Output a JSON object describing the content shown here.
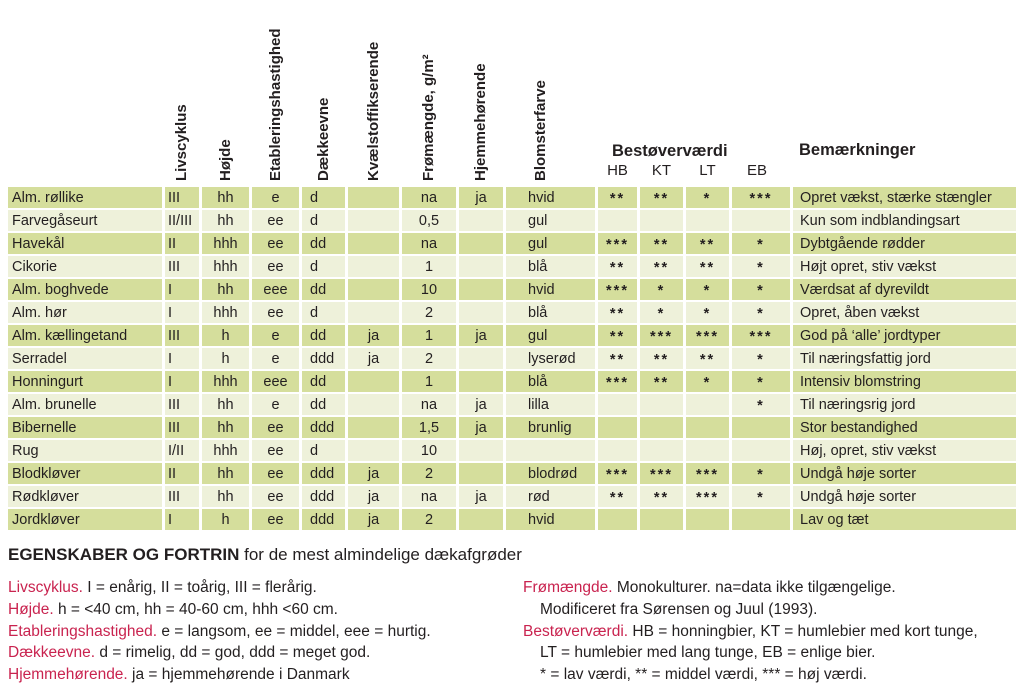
{
  "colors": {
    "row_dark": "#d5de9c",
    "row_light": "#eef1da",
    "footnote_keyword_red": "#c9234f"
  },
  "table": {
    "rotated_headers": [
      "Livscyklus",
      "Højde",
      "Etableringshastighed",
      "Dækkeevne",
      "Kvælstoffikserende",
      "Frømængde, g/m²",
      "Hjemmehørende",
      "Blomsterfarve"
    ],
    "group_headers": {
      "bestover": "Bestøverværdi",
      "bemaerkninger": "Bemærkninger"
    },
    "sub_headers": [
      "HB",
      "KT",
      "LT",
      "EB"
    ],
    "rows": [
      [
        "Alm. røllike",
        "III",
        "hh",
        "e",
        "d",
        "",
        "na",
        "ja",
        "hvid",
        "**",
        "**",
        "*",
        "***",
        "Opret vækst, stærke stængler"
      ],
      [
        "Farvegåseurt",
        "II/III",
        "hh",
        "ee",
        "d",
        "",
        "0,5",
        "",
        "gul",
        "",
        "",
        "",
        "",
        "Kun som indblandingsart"
      ],
      [
        "Havekål",
        "II",
        "hhh",
        "ee",
        "dd",
        "",
        "na",
        "",
        "gul",
        "***",
        "**",
        "**",
        "*",
        "Dybtgående rødder"
      ],
      [
        "Cikorie",
        "III",
        "hhh",
        "ee",
        "d",
        "",
        "1",
        "",
        "blå",
        "**",
        "**",
        "**",
        "*",
        "Højt opret, stiv vækst"
      ],
      [
        "Alm. boghvede",
        "I",
        "hh",
        "eee",
        "dd",
        "",
        "10",
        "",
        "hvid",
        "***",
        "*",
        "*",
        "*",
        "Værdsat af dyrevildt"
      ],
      [
        "Alm. hør",
        "I",
        "hhh",
        "ee",
        "d",
        "",
        "2",
        "",
        "blå",
        "**",
        "*",
        "*",
        "*",
        "Opret, åben vækst"
      ],
      [
        "Alm. kællingetand",
        "III",
        "h",
        "e",
        "dd",
        "ja",
        "1",
        "ja",
        "gul",
        "**",
        "***",
        "***",
        "***",
        "God på ‘alle’ jordtyper"
      ],
      [
        "Serradel",
        "I",
        "h",
        "e",
        "ddd",
        "ja",
        "2",
        "",
        "lyserød",
        "**",
        "**",
        "**",
        "*",
        "Til næringsfattig jord"
      ],
      [
        "Honningurt",
        "I",
        "hhh",
        "eee",
        "dd",
        "",
        "1",
        "",
        "blå",
        "***",
        "**",
        "*",
        "*",
        "Intensiv blomstring"
      ],
      [
        "Alm. brunelle",
        "III",
        "hh",
        "e",
        "dd",
        "",
        "na",
        "ja",
        "lilla",
        "",
        "",
        "",
        "*",
        "Til næringsrig jord"
      ],
      [
        "Bibernelle",
        "III",
        "hh",
        "ee",
        "ddd",
        "",
        "1,5",
        "ja",
        "brunlig",
        "",
        "",
        "",
        "",
        "Stor bestandighed"
      ],
      [
        "Rug",
        "I/II",
        "hhh",
        "ee",
        "d",
        "",
        "10",
        "",
        "",
        "",
        "",
        "",
        "",
        "Høj, opret, stiv vækst"
      ],
      [
        "Blodkløver",
        "II",
        "hh",
        "ee",
        "ddd",
        "ja",
        "2",
        "",
        "blodrød",
        "***",
        "***",
        "***",
        "*",
        "Undgå høje sorter"
      ],
      [
        "Rødkløver",
        "III",
        "hh",
        "ee",
        "ddd",
        "ja",
        "na",
        "ja",
        "rød",
        "**",
        "**",
        "***",
        "*",
        "Undgå høje sorter"
      ],
      [
        "Jordkløver",
        "I",
        "h",
        "ee",
        "ddd",
        "ja",
        "2",
        "",
        "hvid",
        "",
        "",
        "",
        "",
        "Lav og tæt"
      ]
    ]
  },
  "caption": {
    "bold": "EGENSKABER OG FORTRIN",
    "rest": " for de mest almindelige dækafgrøder"
  },
  "footnotes": {
    "left": [
      {
        "key": "Livscyklus.",
        "text": " I = enårig, II = toårig, III = flerårig."
      },
      {
        "key": "Højde.",
        "text": " h = <40 cm, hh = 40-60 cm, hhh <60 cm."
      },
      {
        "key": "Etableringshastighed.",
        "text": " e = langsom, ee = middel, eee = hurtig."
      },
      {
        "key": "Dækkeevne.",
        "text": " d = rimelig, dd = god, ddd = meget god."
      },
      {
        "key": "Hjemmehørende.",
        "text": " ja = hjemmehørende i Danmark"
      }
    ],
    "right": [
      {
        "key": "Frømængde.",
        "text": " Monokulturer. na=data ikke tilgængelige."
      },
      {
        "indent": true,
        "text": "Modificeret fra Sørensen og Juul (1993)."
      },
      {
        "key": "Bestøverværdi.",
        "text": " HB = honningbier, KT = humlebier med kort tunge,"
      },
      {
        "indent": true,
        "text": "LT = humlebier med lang tunge, EB = enlige bier."
      },
      {
        "indent": true,
        "text": "* = lav værdi, ** = middel værdi, *** = høj værdi."
      }
    ]
  }
}
